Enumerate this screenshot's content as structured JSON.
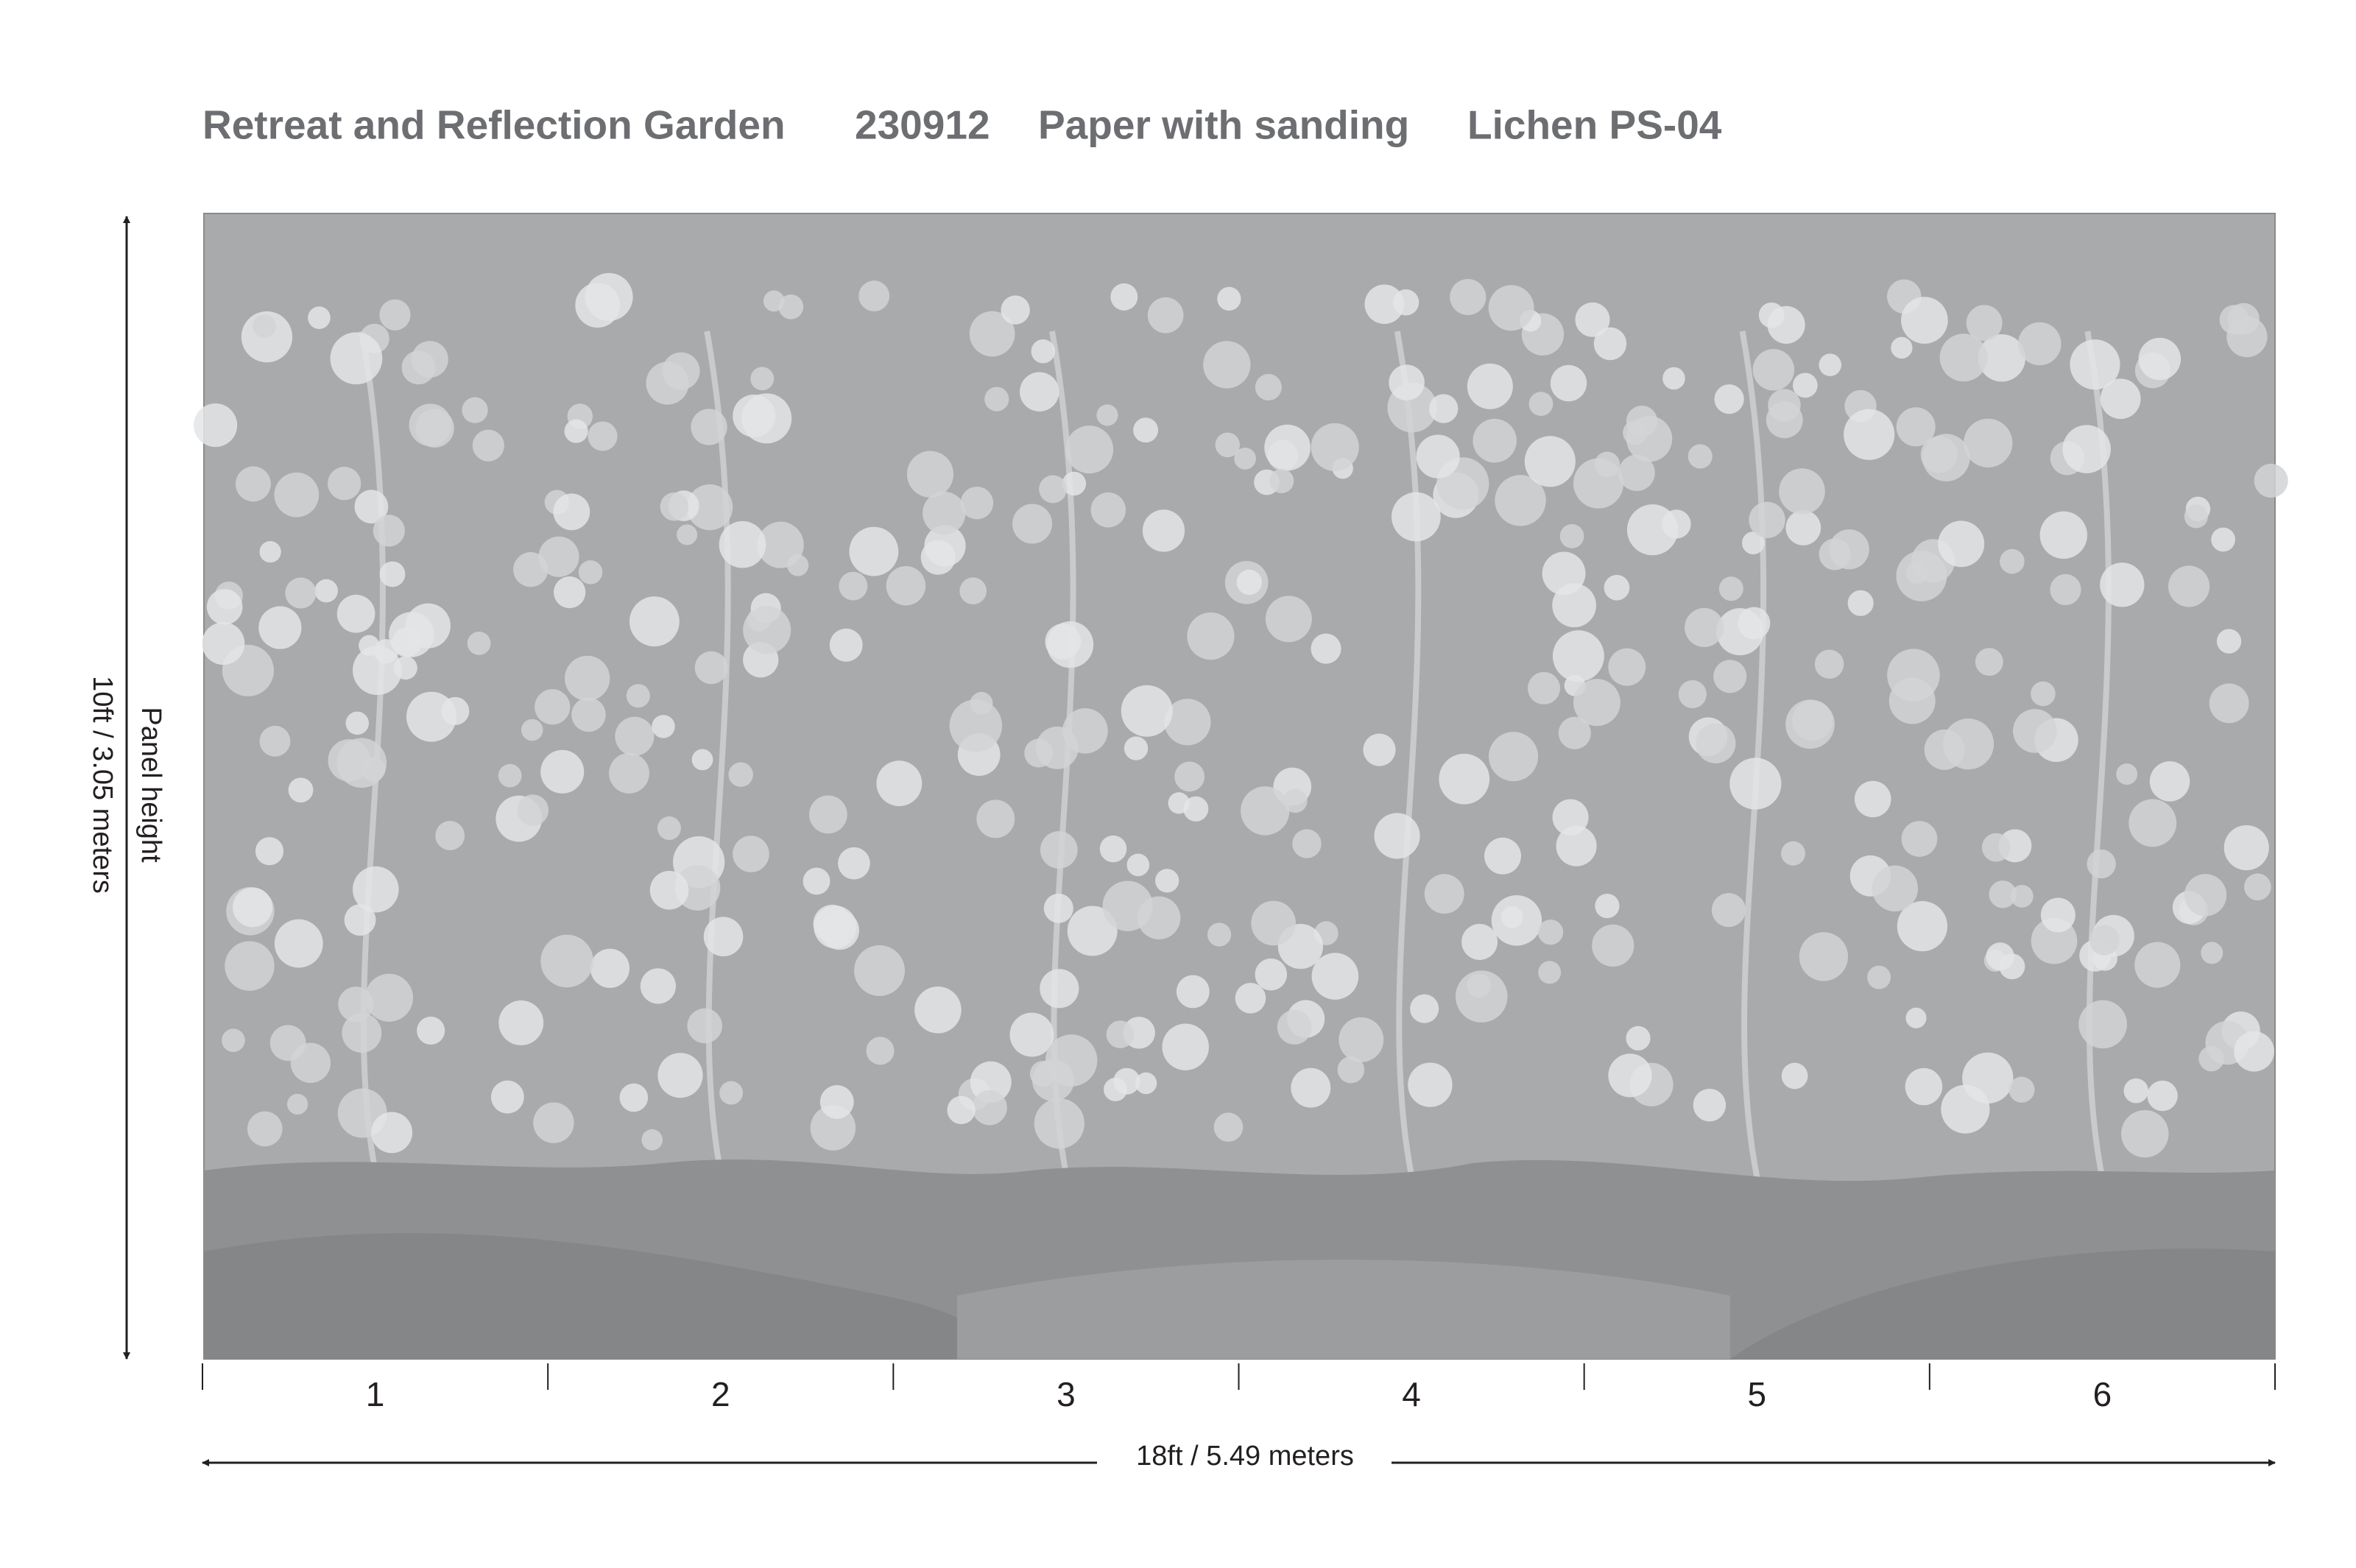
{
  "header": {
    "title": "Retreat and Reflection Garden",
    "code": "230912",
    "material": "Paper with sanding",
    "colorway": "Lichen PS-04"
  },
  "dimensions": {
    "height_label": "Panel height",
    "height_value": "10ft / 3.05 meters",
    "width_value": "18ft / 5.49 meters"
  },
  "panels": [
    "1",
    "2",
    "3",
    "4",
    "5",
    "6"
  ]
}
